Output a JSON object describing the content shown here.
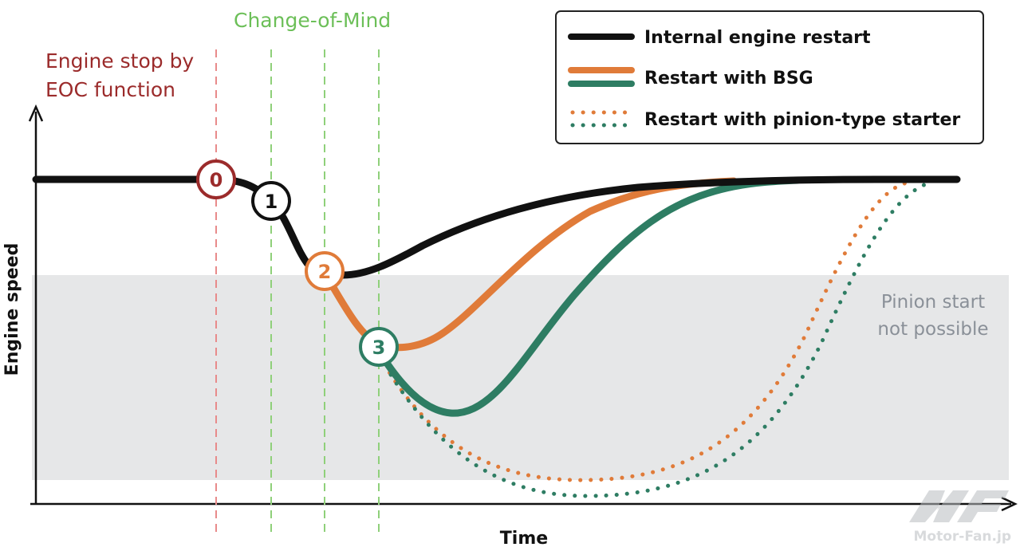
{
  "annotations": {
    "eoc_line1": "Engine stop by",
    "eoc_line2": "EOC function",
    "change_of_mind": "Change-of-Mind",
    "pinion_line1": "Pinion start",
    "pinion_line2": "not possible"
  },
  "axes": {
    "y_label": "Engine speed",
    "x_label": "Time"
  },
  "markers": [
    "0",
    "1",
    "2",
    "3"
  ],
  "legend": {
    "internal": "Internal engine restart",
    "bsg": "Restart with BSG",
    "pinion": "Restart with pinion-type starter"
  },
  "watermark": {
    "text": "Motor-Fan.jp"
  },
  "colors": {
    "black": "#111111",
    "orange": "#e07b39",
    "green": "#2e7d63",
    "red_marker": "#9b2b2b",
    "change_green": "#7cc36a",
    "zone_gray": "#e6e7e8",
    "zone_text": "#8a9098"
  }
}
